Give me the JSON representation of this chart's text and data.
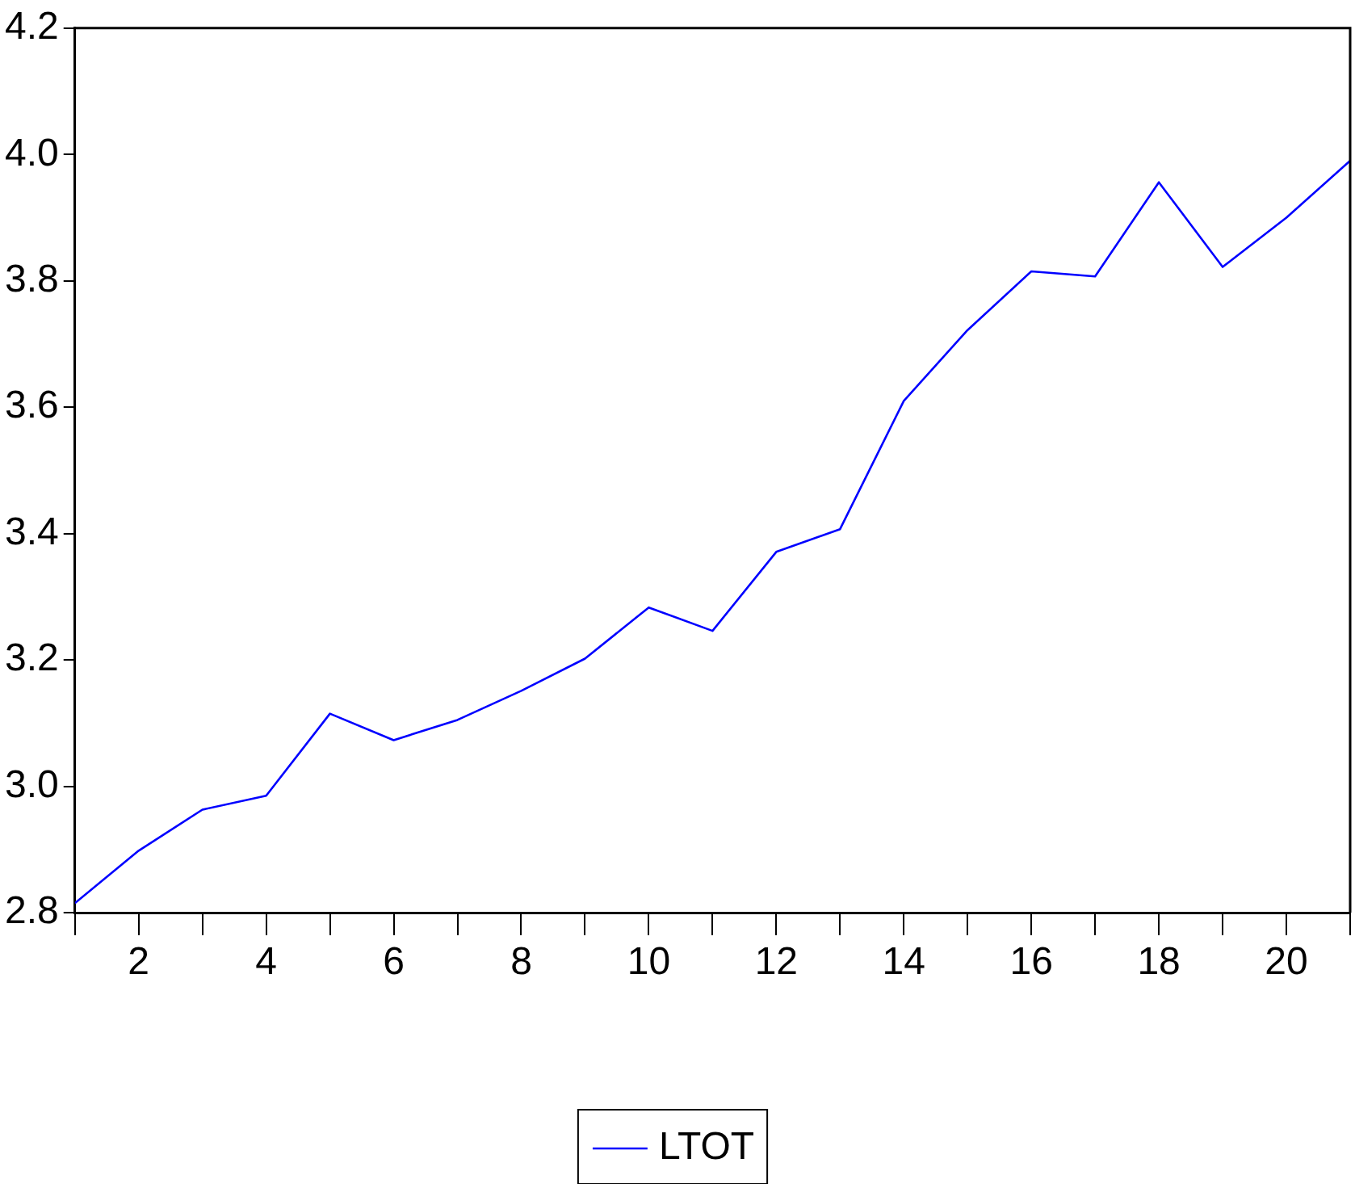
{
  "chart_data": {
    "type": "line",
    "x": [
      1,
      2,
      3,
      4,
      5,
      6,
      7,
      8,
      9,
      10,
      11,
      12,
      13,
      14,
      15,
      16,
      17,
      18,
      19,
      20,
      21
    ],
    "series": [
      {
        "name": "LTOT",
        "color": "#0000ff",
        "values": [
          2.815,
          2.898,
          2.963,
          2.985,
          3.115,
          3.073,
          3.105,
          3.151,
          3.202,
          3.283,
          3.246,
          3.371,
          3.407,
          3.61,
          3.722,
          3.815,
          3.807,
          3.956,
          3.822,
          3.9,
          3.99
        ]
      }
    ],
    "xlim": [
      1,
      21
    ],
    "xticks": [
      {
        "value": 1,
        "label": null
      },
      2,
      {
        "value": 3,
        "label": null
      },
      4,
      {
        "value": 5,
        "label": null
      },
      6,
      {
        "value": 7,
        "label": null
      },
      8,
      {
        "value": 9,
        "label": null
      },
      10,
      {
        "value": 11,
        "label": null
      },
      12,
      {
        "value": 13,
        "label": null
      },
      14,
      {
        "value": 15,
        "label": null
      },
      16,
      {
        "value": 17,
        "label": null
      },
      18,
      {
        "value": 19,
        "label": null
      },
      20,
      {
        "value": 21,
        "label": null
      }
    ],
    "ylim": [
      2.8,
      4.2
    ],
    "yticks": [
      2.8,
      {
        "value": 3,
        "label": "3.0"
      },
      3.2,
      3.4,
      3.6,
      3.8,
      {
        "value": 4,
        "label": "4.0"
      },
      4.2
    ],
    "legend": "bottom",
    "grid": false,
    "marker": "none",
    "line_style": "solid"
  }
}
